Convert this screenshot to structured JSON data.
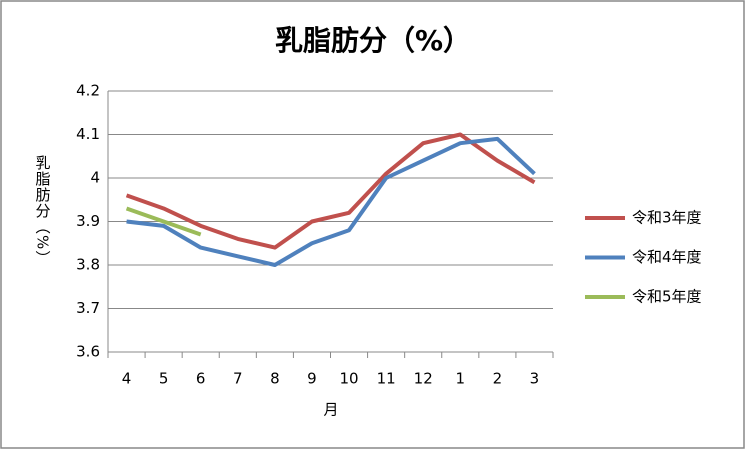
{
  "chart_data": {
    "type": "line",
    "title": "乳脂肪分（%）",
    "x_label": "月",
    "y_label": "乳脂肪分（%）",
    "categories": [
      "4",
      "5",
      "6",
      "7",
      "8",
      "9",
      "10",
      "11",
      "12",
      "1",
      "2",
      "3"
    ],
    "series": [
      {
        "name": "令和3年度",
        "color": "#c0504d",
        "values": [
          3.96,
          3.93,
          3.89,
          3.86,
          3.84,
          3.9,
          3.92,
          4.01,
          4.08,
          4.1,
          4.04,
          3.99
        ]
      },
      {
        "name": "令和4年度",
        "color": "#4f81bd",
        "values": [
          3.9,
          3.89,
          3.84,
          3.82,
          3.8,
          3.85,
          3.88,
          4.0,
          4.04,
          4.08,
          4.09,
          4.01
        ]
      },
      {
        "name": "令和5年度",
        "color": "#9bbb59",
        "values": [
          3.93,
          3.9,
          3.87,
          null,
          null,
          null,
          null,
          null,
          null,
          null,
          null,
          null
        ]
      }
    ],
    "ylim": [
      3.6,
      4.2
    ],
    "yticks": [
      3.6,
      3.7,
      3.8,
      3.9,
      4,
      4.1,
      4.2
    ],
    "grid": true,
    "legend": "right"
  }
}
